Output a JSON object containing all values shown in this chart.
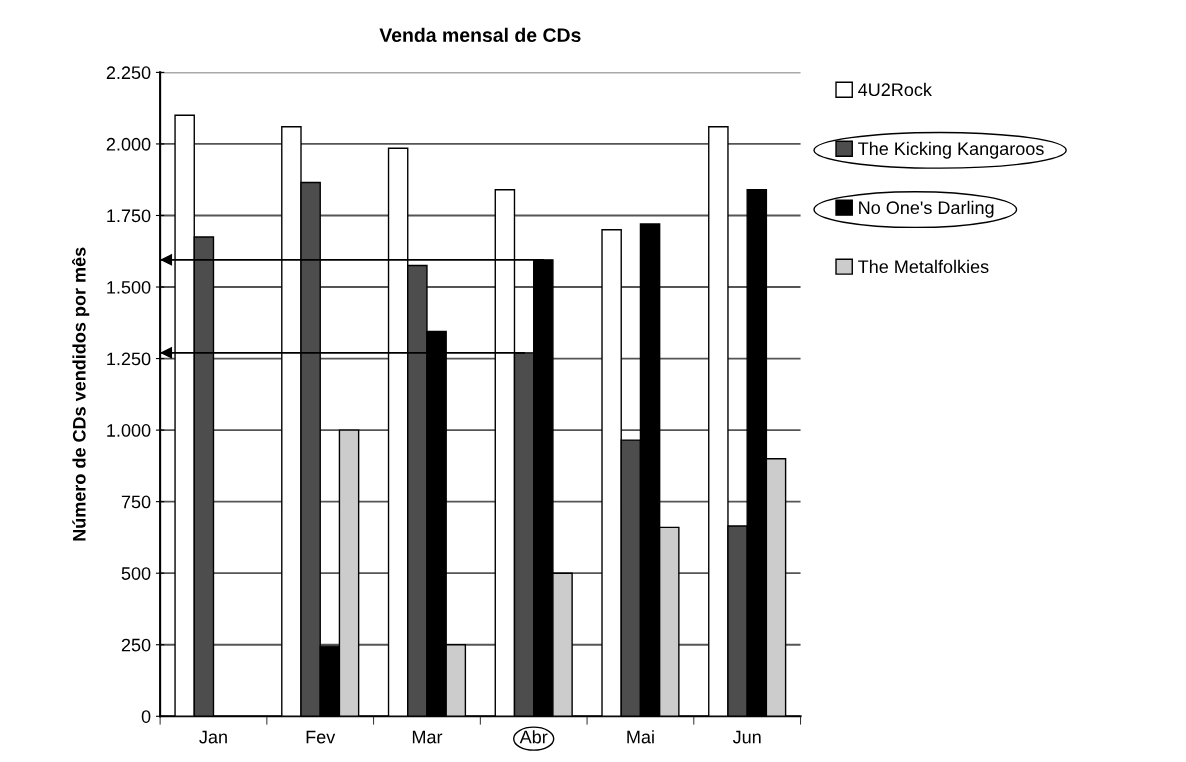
{
  "chart_data": {
    "type": "bar",
    "title": "Venda mensal de CDs",
    "ylabel": "Número de CDs vendidos por mês",
    "categories": [
      "Jan",
      "Fev",
      "Mar",
      "Abr",
      "Mai",
      "Jun"
    ],
    "series": [
      {
        "name": "4U2Rock",
        "color": "#ffffff",
        "values": [
          2100,
          2060,
          1985,
          1840,
          1700,
          2060
        ]
      },
      {
        "name": "The Kicking Kangaroos",
        "color": "#4d4d4d",
        "values": [
          1675,
          1865,
          1575,
          1270,
          965,
          665
        ]
      },
      {
        "name": "No One's Darling",
        "color": "#000000",
        "values": [
          null,
          245,
          1345,
          1595,
          1720,
          1840
        ]
      },
      {
        "name": "The Metalfolkies",
        "color": "#cccccc",
        "values": [
          null,
          1000,
          250,
          500,
          660,
          900
        ]
      }
    ],
    "ylim": [
      0,
      2250
    ],
    "yticks": [
      0,
      250,
      500,
      750,
      {
        "value": 1000,
        "label": "1.000"
      },
      {
        "value": 1250,
        "label": "1.250"
      },
      {
        "value": 1500,
        "label": "1.500"
      },
      {
        "value": 1750,
        "label": "1.750"
      },
      {
        "value": 2000,
        "label": "2.000"
      },
      {
        "value": 2250,
        "label": "2.250"
      }
    ],
    "grid": "y",
    "legend": "right",
    "ref_lines": [
      {
        "axis": "y",
        "value": 1595,
        "label": null,
        "color": "#000000",
        "line_style": "solid"
      },
      {
        "axis": "y",
        "value": 1270,
        "label": null,
        "color": "#000000",
        "line_style": "solid"
      }
    ]
  }
}
